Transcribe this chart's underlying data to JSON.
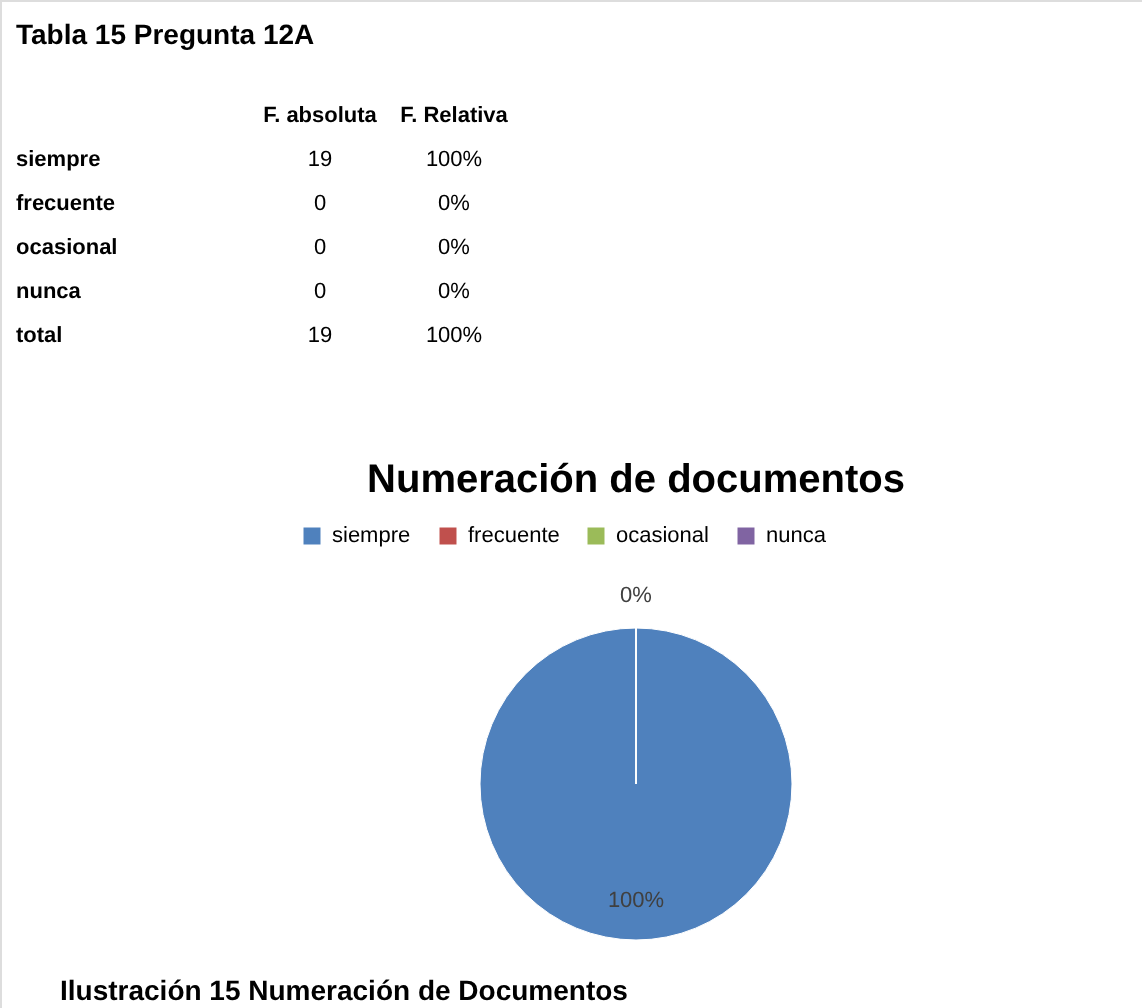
{
  "chart_data": {
    "type": "pie",
    "title": "Numeración de documentos",
    "categories": [
      "siempre",
      "frecuente",
      "ocasional",
      "nunca"
    ],
    "values": [
      100,
      0,
      0,
      0
    ],
    "colors": [
      "#4f81bd",
      "#c0504d",
      "#9bbb59",
      "#8064a2"
    ],
    "value_labels": [
      "100%",
      "0%",
      null,
      null
    ],
    "legend": "top",
    "annotations": [
      "Tabla 15 Pregunta 12A",
      "F. absoluta",
      "F. Relativa",
      "siempre",
      "19",
      "100%",
      "frecuente",
      "0",
      "0%",
      "ocasional",
      "0",
      "0%",
      "nunca",
      "0",
      "0%",
      "total",
      "19",
      "100%",
      "Ilustración 15 Numeración de Documentos"
    ]
  }
}
